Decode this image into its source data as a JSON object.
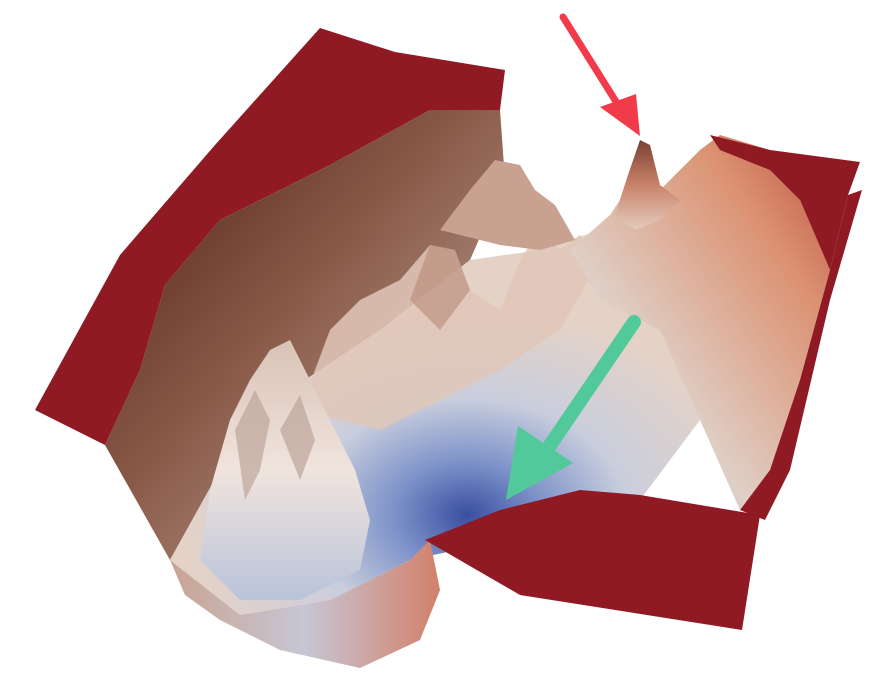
{
  "image": {
    "subject": "loss-landscape-surface",
    "background_color": "#ffffff",
    "colors": {
      "high_region": "#8f1a24",
      "warm": "#d9886a",
      "neutral": "#e6d9d2",
      "cool": "#a8b8d8",
      "minimum": "#3a4fa0"
    }
  },
  "annotations": [
    {
      "name": "red-arrow",
      "color": "#f23b4a",
      "points_to": "local-peak"
    },
    {
      "name": "green-arrow",
      "color": "#52c99a",
      "points_to": "global-minimum"
    }
  ]
}
